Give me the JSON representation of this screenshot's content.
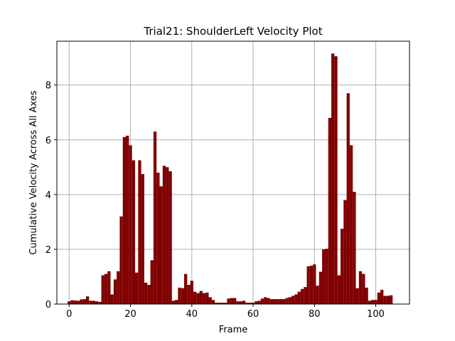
{
  "chart_data": {
    "type": "bar",
    "title": "Trial21: ShoulderLeft Velocity Plot",
    "xlabel": "Frame",
    "ylabel": "Cumulative Velocity Across All Axes",
    "xlim": [
      -4,
      111
    ],
    "ylim": [
      0,
      9.6
    ],
    "xticks": [
      0,
      20,
      40,
      60,
      80,
      100
    ],
    "yticks": [
      0,
      2,
      4,
      6,
      8
    ],
    "grid": true,
    "bar_color": "#800000",
    "bar_width": 1.0,
    "x": [
      0,
      1,
      2,
      3,
      4,
      5,
      6,
      7,
      8,
      9,
      10,
      11,
      12,
      13,
      14,
      15,
      16,
      17,
      18,
      19,
      20,
      21,
      22,
      23,
      24,
      25,
      26,
      27,
      28,
      29,
      30,
      31,
      32,
      33,
      34,
      35,
      36,
      37,
      38,
      39,
      40,
      41,
      42,
      43,
      44,
      45,
      46,
      47,
      48,
      49,
      50,
      51,
      52,
      53,
      54,
      55,
      56,
      57,
      58,
      59,
      60,
      61,
      62,
      63,
      64,
      65,
      66,
      67,
      68,
      69,
      70,
      71,
      72,
      73,
      74,
      75,
      76,
      77,
      78,
      79,
      80,
      81,
      82,
      83,
      84,
      85,
      86,
      87,
      88,
      89,
      90,
      91,
      92,
      93,
      94,
      95,
      96,
      97,
      98,
      99,
      100,
      101,
      102,
      103,
      104,
      105
    ],
    "values": [
      0.1,
      0.14,
      0.13,
      0.12,
      0.17,
      0.18,
      0.28,
      0.12,
      0.12,
      0.1,
      0.08,
      1.05,
      1.1,
      1.2,
      0.35,
      0.9,
      1.2,
      3.2,
      6.1,
      6.15,
      5.8,
      5.25,
      1.15,
      5.25,
      4.75,
      0.78,
      0.7,
      1.6,
      6.3,
      4.8,
      4.3,
      5.05,
      5.0,
      4.85,
      0.12,
      0.15,
      0.6,
      0.58,
      1.1,
      0.7,
      0.85,
      0.45,
      0.4,
      0.48,
      0.4,
      0.42,
      0.25,
      0.15,
      0.05,
      0.05,
      0.05,
      0.05,
      0.2,
      0.22,
      0.22,
      0.1,
      0.1,
      0.12,
      0.05,
      0.05,
      0.05,
      0.1,
      0.12,
      0.2,
      0.25,
      0.22,
      0.18,
      0.18,
      0.18,
      0.18,
      0.18,
      0.22,
      0.25,
      0.3,
      0.35,
      0.45,
      0.55,
      0.62,
      1.38,
      1.4,
      1.45,
      0.67,
      1.18,
      2.0,
      2.02,
      6.8,
      9.15,
      9.05,
      1.05,
      2.75,
      3.8,
      7.7,
      5.8,
      4.1,
      0.58,
      1.2,
      1.1,
      0.6,
      0.12,
      0.15,
      0.15,
      0.42,
      0.52,
      0.3,
      0.3,
      0.32
    ]
  }
}
